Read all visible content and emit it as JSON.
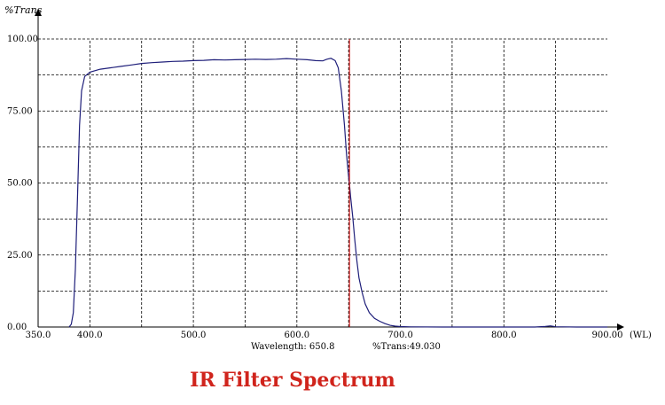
{
  "chart_data": {
    "type": "line",
    "title": "IR Filter Spectrum",
    "ylabel": "%Trans",
    "xlabel": "(WL)",
    "xlim": [
      350,
      900
    ],
    "ylim": [
      0,
      100
    ],
    "x_ticks": [
      "350.0",
      "400.0",
      "500.0",
      "600.0",
      "700.0",
      "800.0",
      "900.00"
    ],
    "x_tick_values": [
      350,
      400,
      500,
      600,
      700,
      800,
      900
    ],
    "y_ticks": [
      "0.00",
      "25.00",
      "50.00",
      "75.00",
      "100.00"
    ],
    "y_tick_values": [
      0,
      25,
      50,
      75,
      100
    ],
    "x_grid": [
      350,
      400,
      450,
      500,
      550,
      600,
      650,
      700,
      750,
      800,
      850
    ],
    "y_grid": [
      0,
      12.5,
      25,
      37.5,
      50,
      62.5,
      75,
      87.5,
      100
    ],
    "grid": true,
    "cursor": {
      "wavelength": 650.8,
      "wavelength_label": "Wavelength: 650.8",
      "trans_label": "%Trans:49.030",
      "color": "#cc0000"
    },
    "series": [
      {
        "color": "#1f1f7a",
        "x": [
          380,
          382,
          384,
          386,
          388,
          390,
          392,
          395,
          400,
          410,
          420,
          430,
          440,
          450,
          460,
          470,
          480,
          490,
          500,
          510,
          520,
          530,
          540,
          550,
          560,
          570,
          580,
          590,
          600,
          610,
          618,
          625,
          629,
          633,
          637,
          640,
          643,
          646,
          648,
          650,
          651,
          652,
          654,
          656,
          658,
          660,
          663,
          666,
          670,
          675,
          680,
          685,
          690,
          695,
          700,
          710,
          740,
          770,
          800,
          830,
          840,
          845,
          850,
          870,
          900
        ],
        "y": [
          0,
          1,
          5,
          20,
          45,
          70,
          82,
          87,
          88.5,
          89.5,
          90,
          90.5,
          91,
          91.5,
          91.8,
          92,
          92.2,
          92.3,
          92.5,
          92.6,
          92.8,
          92.7,
          92.8,
          92.9,
          93,
          92.9,
          93,
          93.2,
          93,
          92.8,
          92.5,
          92.4,
          93,
          93.3,
          92.5,
          90,
          82,
          70,
          60,
          52,
          49,
          45,
          38,
          30,
          23,
          17,
          12,
          8,
          5,
          3,
          2,
          1.2,
          0.6,
          0.3,
          0.15,
          0.05,
          0,
          0,
          0,
          0,
          0.2,
          0.4,
          0.1,
          0,
          0
        ]
      }
    ]
  }
}
